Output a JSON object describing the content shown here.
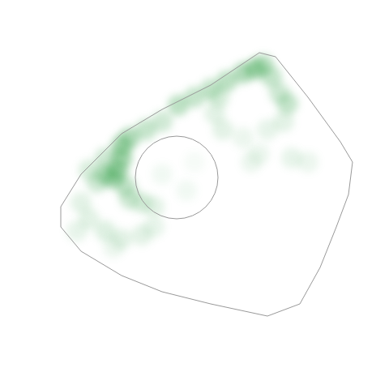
{
  "chart_data": {
    "type": "density",
    "tick_labels": false,
    "color": "#2e9e44",
    "xlim": [
      0,
      480
    ],
    "ylim": [
      0,
      480
    ],
    "outline": {
      "x": [
        75,
        100,
        150,
        200,
        260,
        320,
        340,
        380,
        420,
        435,
        430,
        415,
        395,
        370,
        330,
        260,
        200,
        150,
        100,
        75
      ],
      "y": [
        255,
        215,
        165,
        135,
        105,
        65,
        70,
        120,
        175,
        200,
        240,
        280,
        330,
        375,
        390,
        375,
        360,
        340,
        310,
        280
      ]
    },
    "circle": {
      "x": 218,
      "y": 219,
      "r": 51
    },
    "points": {
      "x": [
        110,
        130,
        150,
        160,
        180,
        200,
        220,
        240,
        260,
        280,
        300,
        315,
        325,
        335,
        345,
        355,
        150,
        145,
        140,
        130,
        155,
        160,
        175,
        190,
        120,
        270,
        265,
        275,
        300,
        330,
        350,
        320,
        360,
        380,
        310,
        100,
        110,
        130,
        150,
        175,
        190,
        95,
        140,
        200,
        230,
        240
      ],
      "y": [
        210,
        195,
        180,
        170,
        160,
        150,
        130,
        120,
        110,
        100,
        90,
        85,
        80,
        95,
        115,
        128,
        195,
        210,
        220,
        215,
        230,
        245,
        250,
        255,
        225,
        120,
        140,
        160,
        170,
        160,
        150,
        190,
        195,
        200,
        200,
        250,
        270,
        285,
        295,
        290,
        280,
        285,
        305,
        215,
        235,
        200
      ],
      "density": [
        0.4,
        0.5,
        0.9,
        0.8,
        0.6,
        0.5,
        0.7,
        0.6,
        0.6,
        0.7,
        0.8,
        0.9,
        0.7,
        0.6,
        0.5,
        0.6,
        0.9,
        0.9,
        0.8,
        0.7,
        0.6,
        0.5,
        0.4,
        0.3,
        0.5,
        0.4,
        0.3,
        0.3,
        0.2,
        0.25,
        0.3,
        0.2,
        0.25,
        0.2,
        0.2,
        0.3,
        0.3,
        0.35,
        0.3,
        0.3,
        0.25,
        0.25,
        0.2,
        0.15,
        0.15,
        0.1
      ]
    }
  }
}
